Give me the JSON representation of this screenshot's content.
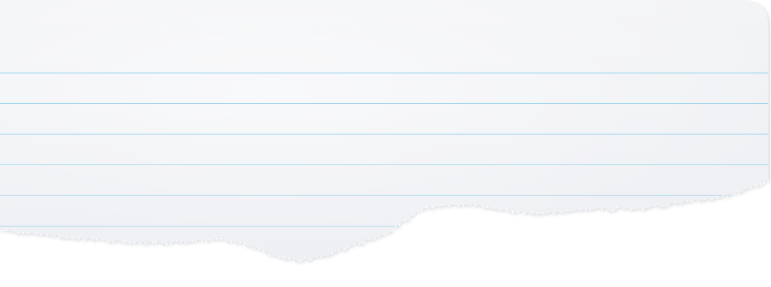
{
  "image": {
    "subject": "torn-lined-notebook-paper",
    "ruled_line_count": 6,
    "colors": {
      "background": "#ffffff",
      "paper_top": "#f3f4f6",
      "paper_bottom": "#eceef2",
      "paper_edge_shadow": "#c9ccd2",
      "ruled_line": "#8fd0ec"
    }
  }
}
